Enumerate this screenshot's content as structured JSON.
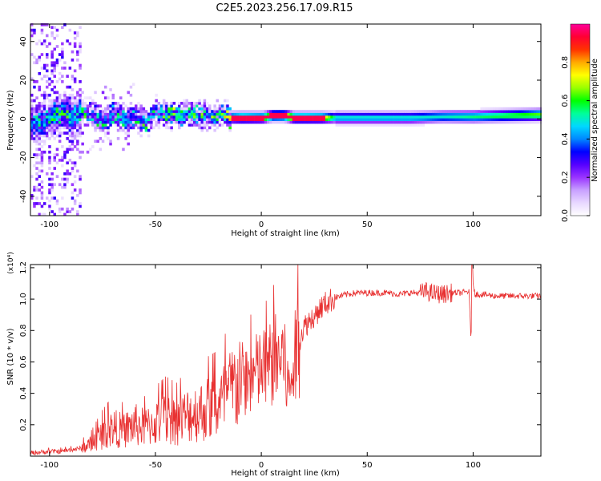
{
  "title": "C2E5.2023.256.17.09.R15",
  "chart_data": [
    {
      "type": "heatmap",
      "name": "spectrogram",
      "xlabel": "Height of straight line (km)",
      "ylabel": "Frequency (Hz)",
      "xlim": [
        -109,
        132
      ],
      "ylim": [
        -50,
        49
      ],
      "xticks": [
        -100,
        -50,
        0,
        50,
        100
      ],
      "yticks": [
        -40,
        -20,
        0,
        20,
        40
      ],
      "colorbar": {
        "label": "Normalized spectral amplitude",
        "range": [
          0.0,
          1.0
        ],
        "ticks": [
          0.0,
          0.2,
          0.4,
          0.6,
          0.8
        ],
        "tick_labels": [
          "0.0",
          "0.2",
          "0.4",
          "0.6",
          "0.8"
        ],
        "colors": [
          "#ffffff",
          "#e8d8ff",
          "#c8a0ff",
          "#9933ff",
          "#5500ff",
          "#0000ff",
          "#0088ff",
          "#00d8ff",
          "#00ff99",
          "#00ff00",
          "#99ff00",
          "#ffff00",
          "#ffaa00",
          "#ff3300",
          "#ff0033",
          "#ff0099"
        ]
      },
      "trace": [
        {
          "x": -107,
          "y": -3,
          "a": 0.45
        },
        {
          "x": -100,
          "y": 0,
          "a": 0.5
        },
        {
          "x": -95,
          "y": 2,
          "a": 0.55
        },
        {
          "x": -90,
          "y": 0,
          "a": 0.5
        },
        {
          "x": -85,
          "y": 3,
          "a": 0.55
        },
        {
          "x": -80,
          "y": 1,
          "a": 0.5
        },
        {
          "x": -75,
          "y": -2,
          "a": 0.5
        },
        {
          "x": -70,
          "y": 2,
          "a": 0.55
        },
        {
          "x": -65,
          "y": -1,
          "a": 0.5
        },
        {
          "x": -60,
          "y": 0,
          "a": 0.5
        },
        {
          "x": -55,
          "y": -2,
          "a": 0.55
        },
        {
          "x": -50,
          "y": 3,
          "a": 0.55
        },
        {
          "x": -45,
          "y": 2,
          "a": 0.6
        },
        {
          "x": -40,
          "y": 1,
          "a": 0.6
        },
        {
          "x": -35,
          "y": 2,
          "a": 0.6
        },
        {
          "x": -30,
          "y": 1,
          "a": 0.6
        },
        {
          "x": -25,
          "y": 1,
          "a": 0.6
        },
        {
          "x": -20,
          "y": 2,
          "a": 0.55
        },
        {
          "x": -15,
          "y": 0,
          "a": 0.75
        },
        {
          "x": -10,
          "y": 0,
          "a": 0.9
        },
        {
          "x": -5,
          "y": 0,
          "a": 0.85
        },
        {
          "x": 0,
          "y": 0,
          "a": 0.8
        },
        {
          "x": 5,
          "y": 1,
          "a": 0.85
        },
        {
          "x": 10,
          "y": 1,
          "a": 0.9
        },
        {
          "x": 15,
          "y": 0,
          "a": 0.9
        },
        {
          "x": 20,
          "y": 0,
          "a": 0.9
        },
        {
          "x": 28,
          "y": 0,
          "a": 0.85
        },
        {
          "x": 35,
          "y": 0,
          "a": 0.5
        },
        {
          "x": 50,
          "y": 0,
          "a": 0.5
        },
        {
          "x": 70,
          "y": 0,
          "a": 0.5
        },
        {
          "x": 85,
          "y": 0.5,
          "a": 0.5
        },
        {
          "x": 100,
          "y": 0.5,
          "a": 0.55
        },
        {
          "x": 115,
          "y": 1,
          "a": 0.6
        },
        {
          "x": 132,
          "y": 1.5,
          "a": 0.65
        }
      ]
    },
    {
      "type": "line",
      "name": "snr",
      "xlabel": "Height of straight line (km)",
      "ylabel": "SNR (10 * v/v)",
      "yscale_label": "(x10⁴)",
      "xlim": [
        -109,
        132
      ],
      "ylim": [
        0.0,
        1.22
      ],
      "xticks": [
        -100,
        -50,
        0,
        50,
        100
      ],
      "yticks": [
        0.2,
        0.4,
        0.6,
        0.8,
        1.0,
        1.2
      ],
      "ytick_labels": [
        "0.2",
        "0.4",
        "0.6",
        "0.8",
        "1.0",
        "1.2"
      ],
      "series": [
        {
          "name": "SNR",
          "color": "#e83030",
          "x": [
            -109,
            -100,
            -95,
            -90,
            -85,
            -80,
            -75,
            -70,
            -65,
            -60,
            -55,
            -50,
            -45,
            -40,
            -35,
            -30,
            -25,
            -20,
            -15,
            -12,
            -10,
            -8,
            -5,
            -3,
            0,
            3,
            5,
            8,
            10,
            12,
            13,
            15,
            17,
            20,
            25,
            30,
            35,
            40,
            45,
            50,
            55,
            60,
            65,
            70,
            75,
            78,
            80,
            85,
            90,
            95,
            98,
            99,
            100,
            101,
            105,
            110,
            115,
            120,
            125,
            132
          ],
          "y": [
            0.02,
            0.03,
            0.03,
            0.04,
            0.05,
            0.08,
            0.14,
            0.18,
            0.16,
            0.2,
            0.18,
            0.21,
            0.24,
            0.22,
            0.26,
            0.28,
            0.3,
            0.32,
            0.4,
            0.45,
            0.5,
            0.48,
            0.5,
            0.52,
            0.55,
            0.55,
            0.6,
            0.62,
            0.65,
            0.5,
            0.4,
            0.55,
            0.7,
            0.82,
            0.9,
            0.97,
            1.01,
            1.03,
            1.04,
            1.04,
            1.04,
            1.04,
            1.03,
            1.04,
            1.04,
            1.05,
            1.04,
            1.03,
            1.04,
            1.04,
            1.05,
            0.75,
            1.1,
            1.03,
            1.03,
            1.02,
            1.02,
            1.02,
            1.02,
            1.02
          ]
        }
      ]
    }
  ]
}
